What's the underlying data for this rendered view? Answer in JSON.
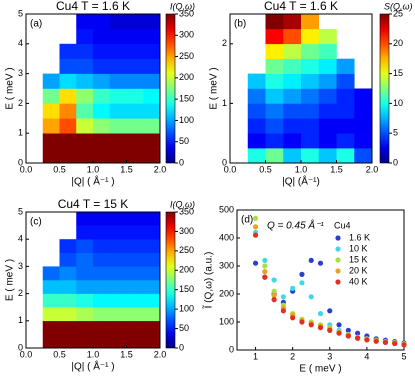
{
  "chart_data": [
    {
      "type": "heatmap",
      "panel_label": "(a)",
      "title": "Cu4 T = 1.6 K",
      "xlabel": "|Q| ( Å⁻¹ )",
      "ylabel": "E ( meV )",
      "colorbar_label": "I(Q,ω)",
      "xlim": [
        0,
        2
      ],
      "ylim": [
        0,
        5
      ],
      "xticks": [
        {
          "value": 0,
          "label": "0.0"
        },
        {
          "value": 0.5,
          "label": "0.5"
        },
        {
          "value": 1,
          "label": "1.0"
        },
        {
          "value": 1.5,
          "label": "1.5"
        },
        {
          "value": 2,
          "label": "2.0"
        }
      ],
      "yticks": [
        0,
        1,
        2,
        3,
        4,
        5
      ],
      "clim": [
        0,
        350
      ],
      "cticks": [
        0,
        50,
        100,
        150,
        200,
        250,
        300,
        350
      ],
      "xbins": [
        0,
        0.25,
        0.5,
        0.75,
        1,
        1.25,
        1.5,
        1.75,
        2
      ],
      "ybins": [
        0,
        0.5,
        1,
        1.5,
        2,
        2.5,
        3,
        3.5,
        4,
        4.5,
        5
      ],
      "z": [
        [
          null,
          400,
          400,
          400,
          400,
          400,
          400,
          400
        ],
        [
          null,
          380,
          380,
          380,
          380,
          380,
          380,
          380
        ],
        [
          null,
          250,
          280,
          200,
          180,
          170,
          170,
          170
        ],
        [
          null,
          230,
          260,
          160,
          130,
          120,
          120,
          120
        ],
        [
          null,
          170,
          230,
          180,
          150,
          140,
          140,
          130
        ],
        [
          null,
          100,
          120,
          110,
          100,
          90,
          90,
          90
        ],
        [
          null,
          null,
          70,
          70,
          60,
          60,
          60,
          60
        ],
        [
          null,
          null,
          60,
          60,
          50,
          50,
          50,
          50
        ],
        [
          null,
          null,
          null,
          50,
          40,
          40,
          40,
          40
        ],
        [
          null,
          null,
          null,
          40,
          40,
          30,
          30,
          30
        ]
      ]
    },
    {
      "type": "heatmap",
      "panel_label": "(b)",
      "title": "Cu4 T = 1.6 K",
      "xlabel": "|Q| (Å⁻¹)",
      "ylabel": "E ( meV )",
      "colorbar_label": "S(Q,ω)",
      "xlim": [
        0,
        2
      ],
      "ylim": [
        0,
        2.5
      ],
      "xticks": [
        {
          "value": 0,
          "label": "0.0"
        },
        {
          "value": 0.5,
          "label": "0.5"
        },
        {
          "value": 1,
          "label": "1.0"
        },
        {
          "value": 1.5,
          "label": "1.5"
        },
        {
          "value": 2,
          "label": "2.0"
        }
      ],
      "yticks": [
        0,
        1,
        2
      ],
      "clim": [
        0,
        25
      ],
      "cticks": [
        0,
        5,
        10,
        15,
        20,
        25
      ],
      "xbins": [
        0,
        0.25,
        0.5,
        0.75,
        1,
        1.25,
        1.5,
        1.75,
        2
      ],
      "ybins": [
        0,
        0.25,
        0.5,
        0.75,
        1,
        1.25,
        1.5,
        1.75,
        2,
        2.25,
        2.5
      ],
      "z": [
        [
          null,
          10,
          12,
          8,
          10,
          8,
          10,
          5
        ],
        [
          null,
          3,
          4,
          3,
          4,
          3,
          4,
          3
        ],
        [
          null,
          4,
          5,
          4,
          4,
          3,
          3,
          3
        ],
        [
          null,
          5,
          6,
          5,
          5,
          4,
          4,
          3
        ],
        [
          null,
          6,
          8,
          7,
          6,
          5,
          4,
          3
        ],
        [
          null,
          8,
          10,
          9,
          8,
          7,
          5,
          null
        ],
        [
          null,
          null,
          12,
          11,
          10,
          9,
          7,
          null
        ],
        [
          null,
          null,
          16,
          14,
          12,
          11,
          null,
          null
        ],
        [
          null,
          null,
          22,
          20,
          16,
          14,
          null,
          null
        ],
        [
          null,
          null,
          25,
          24,
          18,
          null,
          null,
          null
        ]
      ]
    },
    {
      "type": "heatmap",
      "panel_label": "(c)",
      "title": "Cu4 T = 15 K",
      "xlabel": "|Q| ( Å⁻¹ )",
      "ylabel": "E ( meV )",
      "colorbar_label": "I(Q,ω)",
      "xlim": [
        0,
        2
      ],
      "ylim": [
        0,
        5
      ],
      "xticks": [
        {
          "value": 0,
          "label": "0.0"
        },
        {
          "value": 0.5,
          "label": "0.5"
        },
        {
          "value": 1,
          "label": "1.0"
        },
        {
          "value": 1.5,
          "label": "1.5"
        },
        {
          "value": 2,
          "label": "2.0"
        }
      ],
      "yticks": [
        0,
        1,
        2,
        3,
        4,
        5
      ],
      "clim": [
        0,
        350
      ],
      "cticks": [
        0,
        50,
        100,
        150,
        200,
        250,
        300,
        350
      ],
      "xbins": [
        0,
        0.25,
        0.5,
        0.75,
        1,
        1.25,
        1.5,
        1.75,
        2
      ],
      "ybins": [
        0,
        0.5,
        1,
        1.5,
        2,
        2.5,
        3,
        3.5,
        4,
        4.5,
        5
      ],
      "z": [
        [
          null,
          400,
          400,
          400,
          400,
          400,
          400,
          400
        ],
        [
          null,
          380,
          380,
          380,
          380,
          380,
          380,
          380
        ],
        [
          null,
          200,
          200,
          190,
          180,
          180,
          180,
          180
        ],
        [
          null,
          150,
          150,
          140,
          130,
          130,
          130,
          130
        ],
        [
          null,
          110,
          110,
          100,
          100,
          100,
          100,
          100
        ],
        [
          null,
          80,
          90,
          80,
          80,
          80,
          80,
          80
        ],
        [
          null,
          null,
          70,
          80,
          70,
          70,
          70,
          70
        ],
        [
          null,
          null,
          60,
          70,
          60,
          60,
          60,
          60
        ],
        [
          null,
          null,
          null,
          50,
          50,
          50,
          50,
          50
        ],
        [
          null,
          null,
          null,
          40,
          40,
          40,
          40,
          40
        ]
      ]
    },
    {
      "type": "scatter",
      "panel_label": "(d)",
      "xlabel": "E ( meV )",
      "ylabel": "Ĩ (Q,ω) (a.u.)",
      "annotation": "Q = 0.45 Å⁻¹",
      "legend_title": "Cu4",
      "xlim": [
        0.5,
        5
      ],
      "ylim": [
        0,
        500
      ],
      "xticks": [
        1,
        2,
        3,
        4,
        5
      ],
      "yticks": [
        0,
        100,
        200,
        300,
        400,
        500
      ],
      "x": [
        1,
        1.25,
        1.5,
        1.75,
        2,
        2.25,
        2.5,
        2.75,
        3,
        3.25,
        3.5,
        3.75,
        4,
        4.25,
        4.5,
        4.75,
        5
      ],
      "series": [
        {
          "name": "1.6 K",
          "color": "#2a3fd0",
          "values": [
            310,
            260,
            200,
            170,
            210,
            270,
            320,
            310,
            140,
            90,
            70,
            60,
            50,
            40,
            35,
            30,
            25
          ]
        },
        {
          "name": "10 K",
          "color": "#40d8e8",
          "values": [
            420,
            320,
            250,
            190,
            220,
            240,
            190,
            130,
            90,
            70,
            55,
            45,
            40,
            35,
            30,
            25,
            22
          ]
        },
        {
          "name": "15 K",
          "color": "#a8e040",
          "values": [
            470,
            300,
            210,
            160,
            130,
            110,
            100,
            90,
            80,
            65,
            55,
            45,
            40,
            35,
            30,
            27,
            22
          ]
        },
        {
          "name": "20 K",
          "color": "#f0a020",
          "values": [
            440,
            280,
            195,
            150,
            125,
            105,
            95,
            85,
            75,
            62,
            52,
            44,
            38,
            33,
            28,
            25,
            20
          ]
        },
        {
          "name": "40 K",
          "color": "#e03020",
          "values": [
            410,
            260,
            180,
            140,
            115,
            100,
            90,
            80,
            70,
            60,
            50,
            42,
            36,
            31,
            27,
            23,
            18
          ]
        }
      ]
    }
  ]
}
